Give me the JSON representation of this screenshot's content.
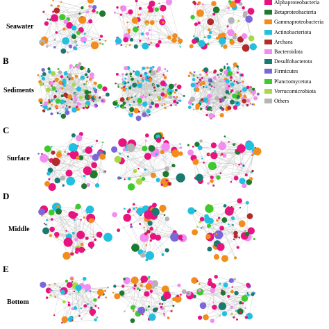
{
  "panels": [
    {
      "letter": "",
      "label": "Seawater"
    },
    {
      "letter": "B",
      "label": "Sediments"
    },
    {
      "letter": "C",
      "label": "Surface"
    },
    {
      "letter": "D",
      "label": "Middle"
    },
    {
      "letter": "E",
      "label": "Bottom"
    }
  ],
  "legend": {
    "items": [
      {
        "label": "Alphaproteobacteria",
        "color": "#e8137f"
      },
      {
        "label": "Betaproteobacteria",
        "color": "#1e7a2e"
      },
      {
        "label": "Gammaproteobacteria",
        "color": "#f28c1c"
      },
      {
        "label": "Actinobacteriota",
        "color": "#22c0e0"
      },
      {
        "label": "Archaea",
        "color": "#b32a2a"
      },
      {
        "label": "Bacteroidota",
        "color": "#f28cf0"
      },
      {
        "label": "Desulfobacterota",
        "color": "#1a7a70"
      },
      {
        "label": "Firmicutes",
        "color": "#7b68d8"
      },
      {
        "label": "Planctomycetota",
        "color": "#3ec92e"
      },
      {
        "label": "Verrucomicrobiota",
        "color": "#a8d84a"
      },
      {
        "label": "Others",
        "color": "#b4b4b4"
      }
    ]
  }
}
